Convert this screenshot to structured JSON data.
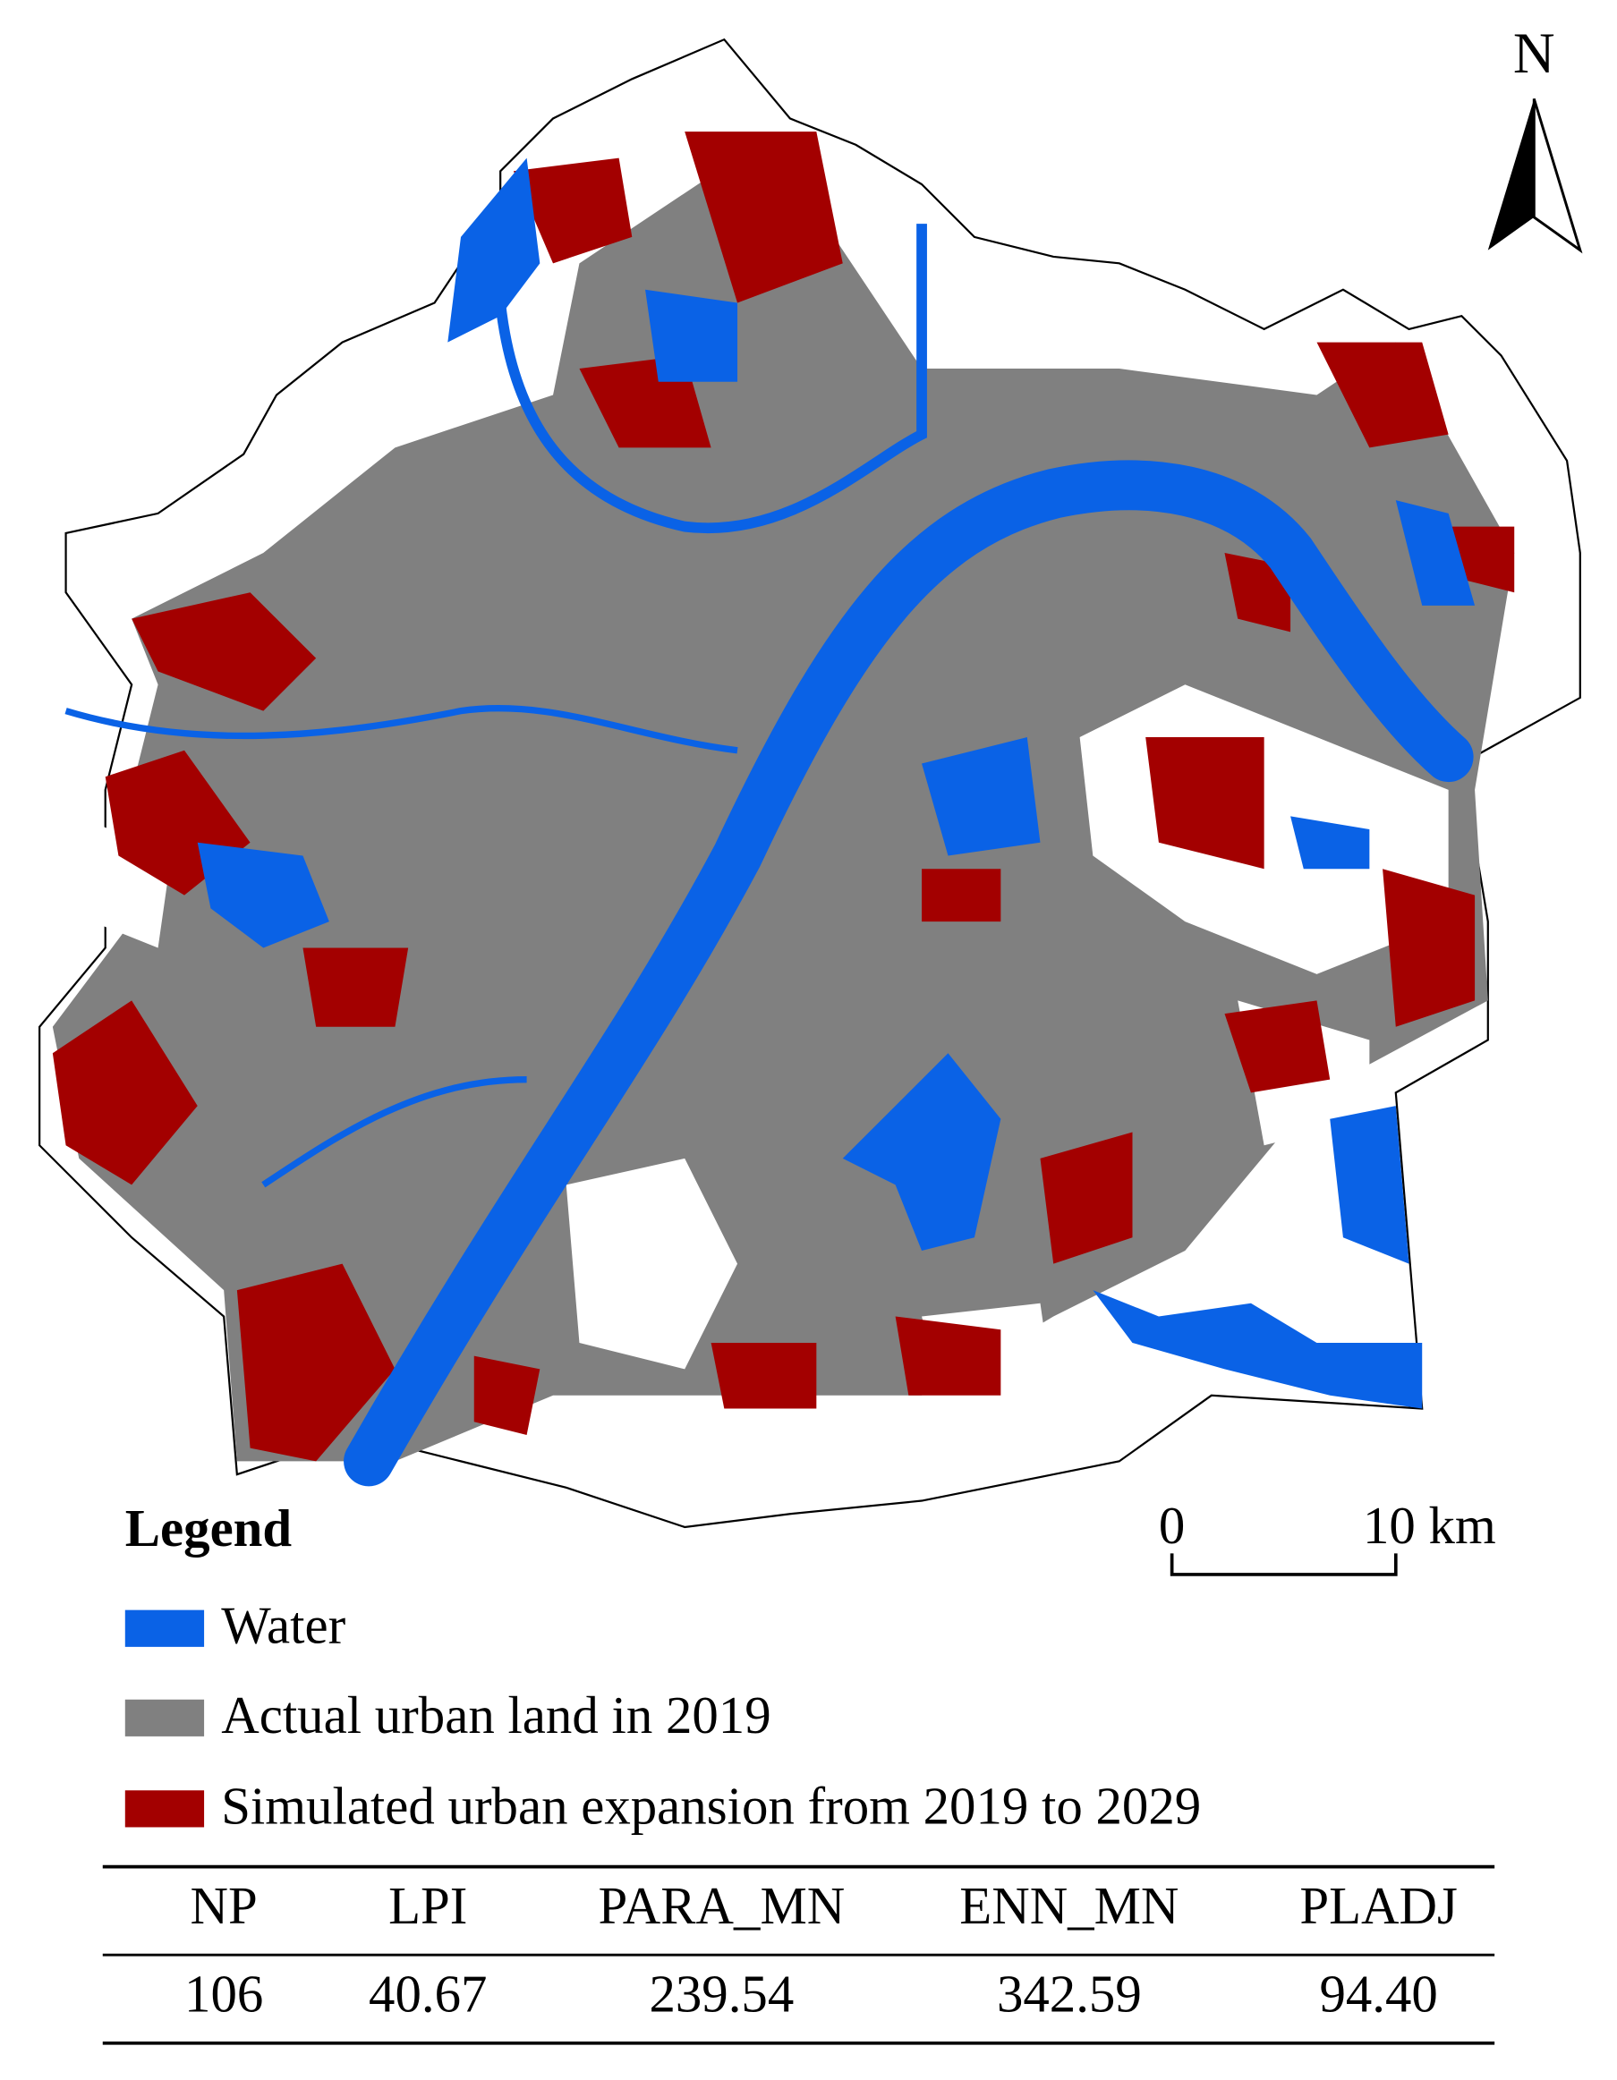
{
  "north_arrow": "N",
  "scale_bar": {
    "labels": [
      "0",
      "10 km"
    ]
  },
  "legend": {
    "title": "Legend",
    "items": [
      "Water",
      "Actual urban land in 2019",
      "Simulated urban expansion from 2019 to 2029"
    ]
  },
  "table": {
    "header": [
      "NP",
      "LPI",
      "PARA_MN",
      "ENN_MN",
      "PLADJ"
    ],
    "rows": [
      [
        "106",
        "40.67",
        "239.54",
        "342.59",
        "94.40"
      ]
    ]
  }
}
